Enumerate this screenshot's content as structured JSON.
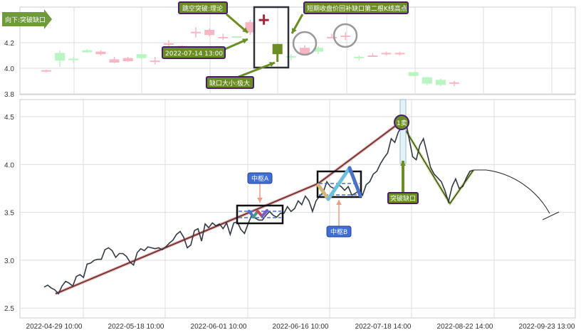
{
  "chart_data": [
    {
      "type": "candlestick",
      "panel": "top",
      "ylim": [
        3.79,
        4.45
      ],
      "yticks": [
        "4.2",
        "4.0",
        "3.8"
      ],
      "ytick_values": [
        4.2,
        4.0,
        3.8
      ],
      "grid": true,
      "colors": {
        "up": "#f7b6c2",
        "down": "#b9f5c2",
        "gap_up": "#a4283c",
        "gap_down": "#6b8e23"
      },
      "candles": [
        {
          "top": 3.985,
          "bottom": 3.975,
          "high": 3.99,
          "low": 3.97,
          "color": "up"
        },
        {
          "top": 4.12,
          "bottom": 4.06,
          "high": 4.14,
          "low": 4.01,
          "color": "down"
        },
        {
          "top": 4.075,
          "bottom": 4.065,
          "high": 4.09,
          "low": 4.04,
          "color": "down"
        },
        {
          "top": 4.14,
          "bottom": 4.125,
          "high": 4.15,
          "low": 4.12,
          "color": "down"
        },
        {
          "top": 4.13,
          "bottom": 4.11,
          "high": 4.14,
          "low": 4.1,
          "color": "up"
        },
        {
          "top": 4.07,
          "bottom": 4.045,
          "high": 4.09,
          "low": 4.04,
          "color": "up"
        },
        {
          "top": 4.08,
          "bottom": 4.055,
          "high": 4.09,
          "low": 4.05,
          "color": "up"
        },
        {
          "top": 4.11,
          "bottom": 4.08,
          "high": 4.11,
          "low": 4.07,
          "color": "down"
        },
        {
          "top": 4.06,
          "bottom": 4.055,
          "high": 4.09,
          "low": 4.03,
          "color": "up"
        },
        {
          "top": 4.195,
          "bottom": 4.19,
          "high": 4.22,
          "low": 4.16,
          "color": "up"
        },
        {
          "top": 4.175,
          "bottom": 4.165,
          "high": 4.18,
          "low": 4.16,
          "color": "up"
        },
        {
          "top": 4.285,
          "bottom": 4.28,
          "high": 4.32,
          "low": 4.24,
          "color": "up"
        },
        {
          "top": 4.3,
          "bottom": 4.26,
          "high": 4.31,
          "low": 4.25,
          "color": "up"
        },
        {
          "top": 4.245,
          "bottom": 4.24,
          "high": 4.27,
          "low": 4.22,
          "color": "up"
        },
        {
          "top": 4.25,
          "bottom": 4.24,
          "high": 4.25,
          "low": 4.24,
          "color": "down"
        },
        {
          "top": 4.36,
          "bottom": 4.28,
          "high": 4.38,
          "low": 4.26,
          "color": "up"
        },
        {
          "top": 4.385,
          "bottom": 4.375,
          "high": 4.42,
          "low": 4.34,
          "color": "gap_up"
        },
        {
          "top": 4.19,
          "bottom": 4.11,
          "high": 4.19,
          "low": 4.05,
          "color": "gap_down"
        },
        {
          "top": 4.095,
          "bottom": 4.09,
          "high": 4.11,
          "low": 4.06,
          "color": "down"
        },
        {
          "top": 4.16,
          "bottom": 4.11,
          "high": 4.18,
          "low": 4.11,
          "color": "up"
        },
        {
          "top": 4.16,
          "bottom": 4.13,
          "high": 4.17,
          "low": 4.11,
          "color": "down"
        },
        {
          "top": 4.245,
          "bottom": 4.24,
          "high": 4.27,
          "low": 4.24,
          "color": "up"
        },
        {
          "top": 4.255,
          "bottom": 4.25,
          "high": 4.28,
          "low": 4.22,
          "color": "up"
        },
        {
          "top": 4.09,
          "bottom": 4.085,
          "high": 4.1,
          "low": 4.06,
          "color": "down"
        },
        {
          "top": 4.1,
          "bottom": 4.09,
          "high": 4.12,
          "low": 4.09,
          "color": "up"
        },
        {
          "top": 4.12,
          "bottom": 4.115,
          "high": 4.13,
          "low": 4.1,
          "color": "up"
        },
        {
          "top": 4.12,
          "bottom": 4.115,
          "high": 4.13,
          "low": 4.1,
          "color": "up"
        },
        {
          "top": 3.97,
          "bottom": 3.94,
          "high": 3.97,
          "low": 3.94,
          "color": "down"
        },
        {
          "top": 3.93,
          "bottom": 3.88,
          "high": 3.93,
          "low": 3.87,
          "color": "down"
        },
        {
          "top": 3.91,
          "bottom": 3.87,
          "high": 3.92,
          "low": 3.86,
          "color": "down"
        },
        {
          "top": 3.89,
          "bottom": 3.88,
          "high": 3.9,
          "low": 3.86,
          "color": "up"
        }
      ],
      "annotations": {
        "direction_label": "向下:突破缺口",
        "gap_theory": "跳空突破:理论",
        "refill_note": "短期收盘价回补缺口第二根K线高点",
        "gap_time": "2022-07-14 13:00",
        "gap_size": "缺口大小:极大"
      }
    },
    {
      "type": "line",
      "panel": "bottom",
      "ylim": [
        2.4,
        4.67
      ],
      "yticks": [
        "4.5",
        "4.0",
        "3.5",
        "3.0",
        "2.5"
      ],
      "ytick_values": [
        4.5,
        4.0,
        3.5,
        3.0,
        2.5
      ],
      "xticks": [
        "2022-04-29 10:00",
        "2022-05-18 10:00",
        "2022-06-01 10:00",
        "2022-06-16 10:00",
        "2022-07-18 14:00",
        "2022-08-22 14:00",
        "2022-09-23 13:00"
      ],
      "grid": true,
      "line_color": "#333a44",
      "values": [
        2.72,
        2.74,
        2.71,
        2.69,
        2.65,
        2.73,
        2.78,
        2.76,
        2.73,
        2.83,
        2.85,
        2.82,
        2.96,
        2.97,
        3.0,
        3.01,
        3.01,
        3.11,
        3.13,
        3.1,
        3.03,
        3.07,
        3.07,
        3.04,
        2.98,
        2.95,
        3.08,
        3.12,
        3.1,
        3.14,
        3.13,
        3.12,
        3.13,
        3.11,
        3.14,
        3.18,
        3.21,
        3.27,
        3.3,
        3.24,
        3.13,
        3.16,
        3.31,
        3.33,
        3.2,
        3.38,
        3.34,
        3.39,
        3.36,
        3.38,
        3.33,
        3.39,
        3.27,
        3.39,
        3.4,
        3.32,
        3.28,
        3.38,
        3.47,
        3.44,
        3.42,
        3.42,
        3.47,
        3.51,
        3.47,
        3.45,
        3.49,
        3.49,
        3.56,
        3.51,
        3.54,
        3.62,
        3.58,
        3.67,
        3.62,
        3.51,
        3.62,
        3.67,
        3.71,
        3.82,
        3.77,
        3.75,
        3.79,
        3.77,
        3.73,
        3.77,
        3.68,
        3.7,
        3.73,
        3.68,
        3.79,
        3.82,
        3.9,
        3.93,
        4.01,
        4.07,
        4.12,
        4.27,
        4.23,
        4.34,
        4.4,
        4.47,
        4.27,
        4.08,
        4.05,
        4.2,
        4.27,
        4.12,
        3.97,
        3.9,
        3.86,
        3.82,
        3.73,
        3.61,
        3.77,
        3.85,
        3.75,
        3.77,
        3.86,
        3.93,
        3.94
      ],
      "annotations": {
        "pivot_a": "中枢A",
        "pivot_b": "中枢B",
        "sell_point": "1卖",
        "breakout_gap": "突破缺口"
      }
    }
  ]
}
